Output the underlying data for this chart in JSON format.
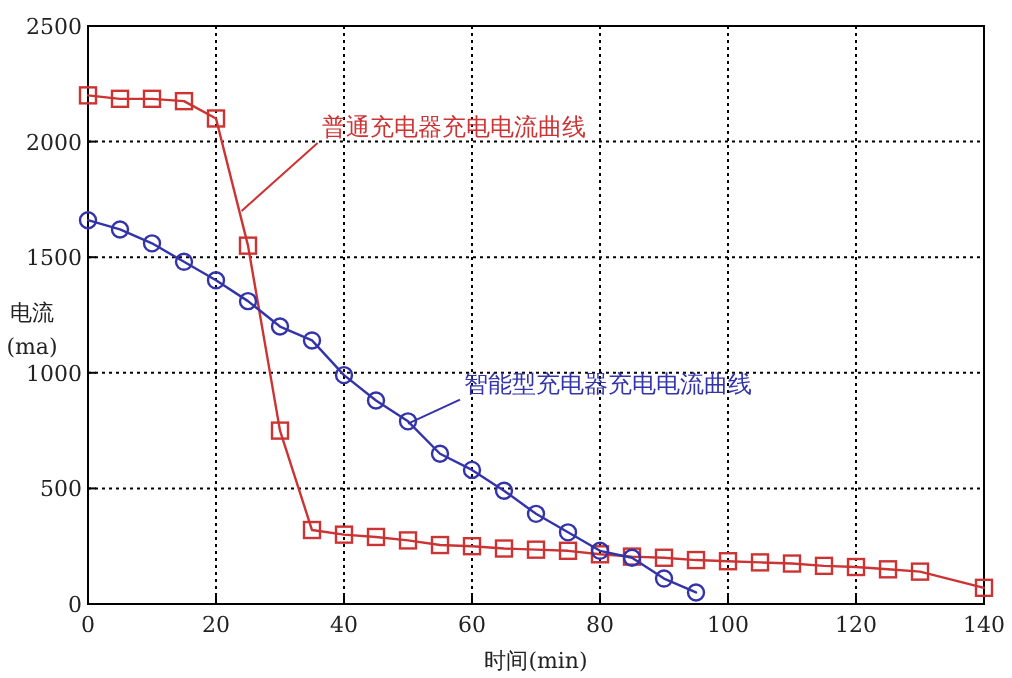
{
  "chart_data": {
    "type": "line",
    "xlabel": "时间(min)",
    "ylabel": "电流 (ma)",
    "xlim": [
      0,
      140
    ],
    "ylim": [
      0,
      2500
    ],
    "xticks": [
      0,
      20,
      40,
      60,
      80,
      100,
      120,
      140
    ],
    "yticks": [
      0,
      500,
      1000,
      1500,
      2000,
      2500
    ],
    "grid": true,
    "line_style": "solid",
    "series": [
      {
        "color": "#cc3333",
        "marker": "square",
        "x": [
          0,
          5,
          10,
          15,
          20,
          25,
          30,
          35,
          40,
          45,
          50,
          55,
          60,
          65,
          70,
          75,
          80,
          85,
          90,
          95,
          100,
          105,
          110,
          115,
          120,
          125,
          130,
          140
        ],
        "values": [
          2200,
          2185,
          2185,
          2175,
          2100,
          1550,
          750,
          320,
          300,
          290,
          275,
          255,
          250,
          240,
          235,
          230,
          215,
          205,
          200,
          190,
          185,
          180,
          175,
          165,
          160,
          150,
          140,
          70
        ]
      },
      {
        "color": "#3333aa",
        "marker": "circle",
        "x": [
          0,
          5,
          10,
          15,
          20,
          25,
          30,
          35,
          40,
          45,
          50,
          55,
          60,
          65,
          70,
          75,
          80,
          85,
          90,
          95
        ],
        "values": [
          1660,
          1620,
          1560,
          1480,
          1400,
          1310,
          1200,
          1140,
          990,
          880,
          790,
          650,
          580,
          490,
          390,
          310,
          230,
          200,
          110,
          50
        ]
      }
    ],
    "annotations": [
      {
        "text": "普通充电器充电电流曲线",
        "x": 24,
        "y": 1700
      },
      {
        "text": "智能型充电器充电电流曲线",
        "x": 50,
        "y": 780
      }
    ]
  }
}
